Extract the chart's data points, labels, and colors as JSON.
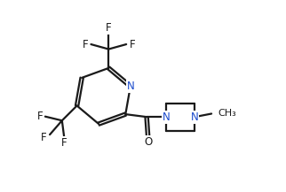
{
  "bg_color": "#ffffff",
  "line_color": "#1a1a1a",
  "N_color": "#1a4acc",
  "line_width": 1.6,
  "font_size": 8.5,
  "fig_width": 3.22,
  "fig_height": 2.17,
  "dpi": 100,
  "xlim": [
    0.0,
    10.5
  ],
  "ylim": [
    0.5,
    7.5
  ]
}
